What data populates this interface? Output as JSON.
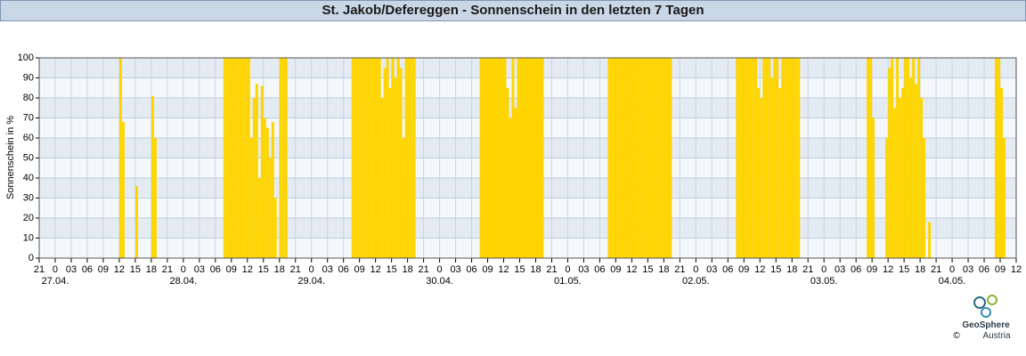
{
  "chart_data": {
    "type": "bar",
    "title": "St. Jakob/Defereggen - Sonnenschein in den letzten 7 Tagen",
    "ylabel": "Sonnenschein in %",
    "color": "#ffd500",
    "grid": true,
    "bar_width": 0.5,
    "xlim": [
      0,
      183
    ],
    "ylim": [
      0,
      100
    ],
    "yticks": [
      0,
      10,
      20,
      30,
      40,
      50,
      60,
      70,
      80,
      90,
      100
    ],
    "xticks": [
      {
        "value": 0,
        "label": "21"
      },
      {
        "value": 3,
        "label": "0"
      },
      {
        "value": 6,
        "label": "03"
      },
      {
        "value": 9,
        "label": "06"
      },
      {
        "value": 12,
        "label": "09"
      },
      {
        "value": 15,
        "label": "12"
      },
      {
        "value": 18,
        "label": "15"
      },
      {
        "value": 21,
        "label": "18"
      },
      {
        "value": 24,
        "label": "21"
      },
      {
        "value": 27,
        "label": "0"
      },
      {
        "value": 30,
        "label": "03"
      },
      {
        "value": 33,
        "label": "06"
      },
      {
        "value": 36,
        "label": "09"
      },
      {
        "value": 39,
        "label": "12"
      },
      {
        "value": 42,
        "label": "15"
      },
      {
        "value": 45,
        "label": "18"
      },
      {
        "value": 48,
        "label": "21"
      },
      {
        "value": 51,
        "label": "0"
      },
      {
        "value": 54,
        "label": "03"
      },
      {
        "value": 57,
        "label": "06"
      },
      {
        "value": 60,
        "label": "09"
      },
      {
        "value": 63,
        "label": "12"
      },
      {
        "value": 66,
        "label": "15"
      },
      {
        "value": 69,
        "label": "18"
      },
      {
        "value": 72,
        "label": "21"
      },
      {
        "value": 75,
        "label": "0"
      },
      {
        "value": 78,
        "label": "03"
      },
      {
        "value": 81,
        "label": "06"
      },
      {
        "value": 84,
        "label": "09"
      },
      {
        "value": 87,
        "label": "12"
      },
      {
        "value": 90,
        "label": "15"
      },
      {
        "value": 93,
        "label": "18"
      },
      {
        "value": 96,
        "label": "21"
      },
      {
        "value": 99,
        "label": "0"
      },
      {
        "value": 102,
        "label": "03"
      },
      {
        "value": 105,
        "label": "06"
      },
      {
        "value": 108,
        "label": "09"
      },
      {
        "value": 111,
        "label": "12"
      },
      {
        "value": 114,
        "label": "15"
      },
      {
        "value": 117,
        "label": "18"
      },
      {
        "value": 120,
        "label": "21"
      },
      {
        "value": 123,
        "label": "0"
      },
      {
        "value": 126,
        "label": "03"
      },
      {
        "value": 129,
        "label": "06"
      },
      {
        "value": 132,
        "label": "09"
      },
      {
        "value": 135,
        "label": "12"
      },
      {
        "value": 138,
        "label": "15"
      },
      {
        "value": 141,
        "label": "18"
      },
      {
        "value": 144,
        "label": "21"
      },
      {
        "value": 147,
        "label": "0"
      },
      {
        "value": 150,
        "label": "03"
      },
      {
        "value": 153,
        "label": "06"
      },
      {
        "value": 156,
        "label": "09"
      },
      {
        "value": 159,
        "label": "12"
      },
      {
        "value": 162,
        "label": "15"
      },
      {
        "value": 165,
        "label": "18"
      },
      {
        "value": 168,
        "label": "21"
      },
      {
        "value": 171,
        "label": "0"
      },
      {
        "value": 174,
        "label": "03"
      },
      {
        "value": 177,
        "label": "06"
      },
      {
        "value": 180,
        "label": "09"
      },
      {
        "value": 183,
        "label": "12"
      }
    ],
    "date_ticks": [
      {
        "value": 3,
        "label": "27.04."
      },
      {
        "value": 27,
        "label": "28.04."
      },
      {
        "value": 51,
        "label": "29.04."
      },
      {
        "value": 75,
        "label": "30.04."
      },
      {
        "value": 99,
        "label": "01.05."
      },
      {
        "value": 123,
        "label": "02.05."
      },
      {
        "value": 147,
        "label": "03.05."
      },
      {
        "value": 171,
        "label": "04.05."
      }
    ],
    "x": [
      15,
      15.5,
      18,
      21,
      21.5,
      34.5,
      35,
      35.5,
      36,
      36.5,
      37,
      37.5,
      38,
      38.5,
      39,
      39.5,
      40,
      40.5,
      41,
      41.5,
      42,
      42.5,
      43,
      43.5,
      44,
      45,
      45.5,
      46,
      58.5,
      59,
      59.5,
      60,
      60.5,
      61,
      61.5,
      62,
      62.5,
      63,
      63.5,
      64,
      64.5,
      65,
      65.5,
      66,
      66.5,
      67,
      67.5,
      68,
      68.5,
      69,
      69.5,
      70,
      82.5,
      83,
      83.5,
      84,
      84.5,
      85,
      85.5,
      86,
      86.5,
      87,
      87.5,
      88,
      88.5,
      89,
      89.5,
      90,
      90.5,
      91,
      91.5,
      92,
      92.5,
      93,
      93.5,
      94,
      106.5,
      107,
      107.5,
      108,
      108.5,
      109,
      109.5,
      110,
      110.5,
      111,
      111.5,
      112,
      112.5,
      113,
      113.5,
      114,
      114.5,
      115,
      115.5,
      116,
      116.5,
      117,
      117.5,
      118,
      130.5,
      131,
      131.5,
      132,
      132.5,
      133,
      133.5,
      134,
      134.5,
      135,
      135.5,
      136,
      136.5,
      137,
      137.5,
      138,
      138.5,
      139,
      139.5,
      140,
      140.5,
      141,
      141.5,
      142,
      155,
      155.5,
      156,
      158.5,
      159,
      159.5,
      160,
      160.5,
      161,
      161.5,
      162,
      162.5,
      163,
      163.5,
      164,
      164.5,
      165,
      165.5,
      166.5,
      179,
      179.5,
      180,
      180.5
    ],
    "values": [
      100,
      68,
      36,
      81,
      60,
      100,
      100,
      100,
      100,
      100,
      100,
      100,
      100,
      100,
      100,
      60,
      80,
      87,
      40,
      86,
      70,
      65,
      50,
      68,
      30,
      100,
      100,
      100,
      100,
      100,
      100,
      100,
      100,
      100,
      100,
      100,
      100,
      100,
      100,
      80,
      95,
      100,
      85,
      100,
      90,
      100,
      95,
      60,
      100,
      100,
      100,
      100,
      100,
      100,
      100,
      100,
      100,
      100,
      100,
      100,
      100,
      100,
      85,
      70,
      100,
      75,
      100,
      100,
      100,
      100,
      100,
      100,
      100,
      100,
      100,
      100,
      100,
      100,
      100,
      100,
      100,
      100,
      100,
      100,
      100,
      100,
      100,
      100,
      100,
      100,
      100,
      100,
      100,
      100,
      100,
      100,
      100,
      100,
      100,
      100,
      100,
      100,
      100,
      100,
      100,
      100,
      100,
      100,
      85,
      80,
      100,
      100,
      100,
      90,
      100,
      100,
      85,
      100,
      100,
      100,
      100,
      100,
      100,
      100,
      100,
      100,
      70,
      60,
      95,
      100,
      75,
      100,
      80,
      85,
      100,
      100,
      90,
      100,
      87,
      100,
      80,
      60,
      18,
      100,
      100,
      85,
      60
    ]
  },
  "logo": {
    "name": "GeoSphere",
    "country": "Austria",
    "copyright": "©"
  }
}
